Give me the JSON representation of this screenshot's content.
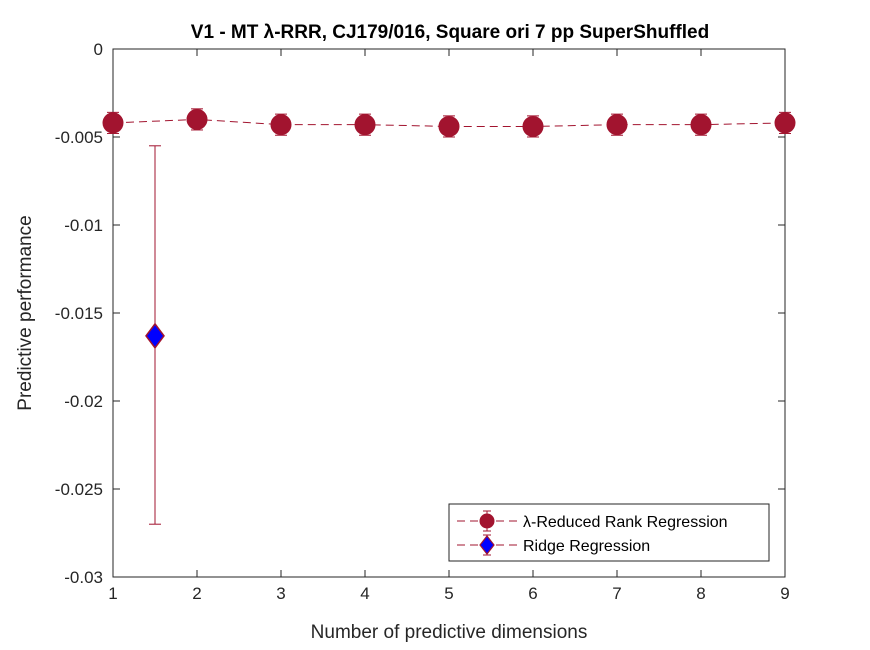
{
  "chart_data": {
    "type": "scatter",
    "title": "V1 - MT λ-RRR, CJ179/016, Square ori 7 pp  SuperShuffled",
    "xlabel": "Number of predictive dimensions",
    "ylabel": "Predictive performance",
    "xlim": [
      1,
      9
    ],
    "ylim": [
      -0.03,
      0
    ],
    "xticks": [
      "1",
      "2",
      "3",
      "4",
      "5",
      "6",
      "7",
      "8",
      "9"
    ],
    "yticks": [
      "0",
      "-0.005",
      "-0.01",
      "-0.015",
      "-0.02",
      "-0.025",
      "-0.03"
    ],
    "ytick_values": [
      0,
      -0.005,
      -0.01,
      -0.015,
      -0.02,
      -0.025,
      -0.03
    ],
    "grid": false,
    "legend_position": "bottom-right",
    "series": [
      {
        "name": "λ-Reduced Rank Regression",
        "marker": "circle",
        "line": "dashed",
        "color": "#a2142f",
        "x": [
          1,
          2,
          3,
          4,
          5,
          6,
          7,
          8,
          9
        ],
        "y": [
          -0.0042,
          -0.004,
          -0.0043,
          -0.0043,
          -0.0044,
          -0.0044,
          -0.0043,
          -0.0043,
          -0.0042
        ],
        "err": [
          0.0006,
          0.0006,
          0.0006,
          0.0006,
          0.0006,
          0.0006,
          0.0006,
          0.0006,
          0.0006
        ]
      },
      {
        "name": "Ridge Regression",
        "marker": "diamond",
        "line": "dashed",
        "color": "#0000ff",
        "edge_color": "#a2142f",
        "x": [
          1.5
        ],
        "y": [
          -0.0163
        ],
        "err_low": [
          -0.027
        ],
        "err_high": [
          -0.0055
        ]
      }
    ]
  }
}
